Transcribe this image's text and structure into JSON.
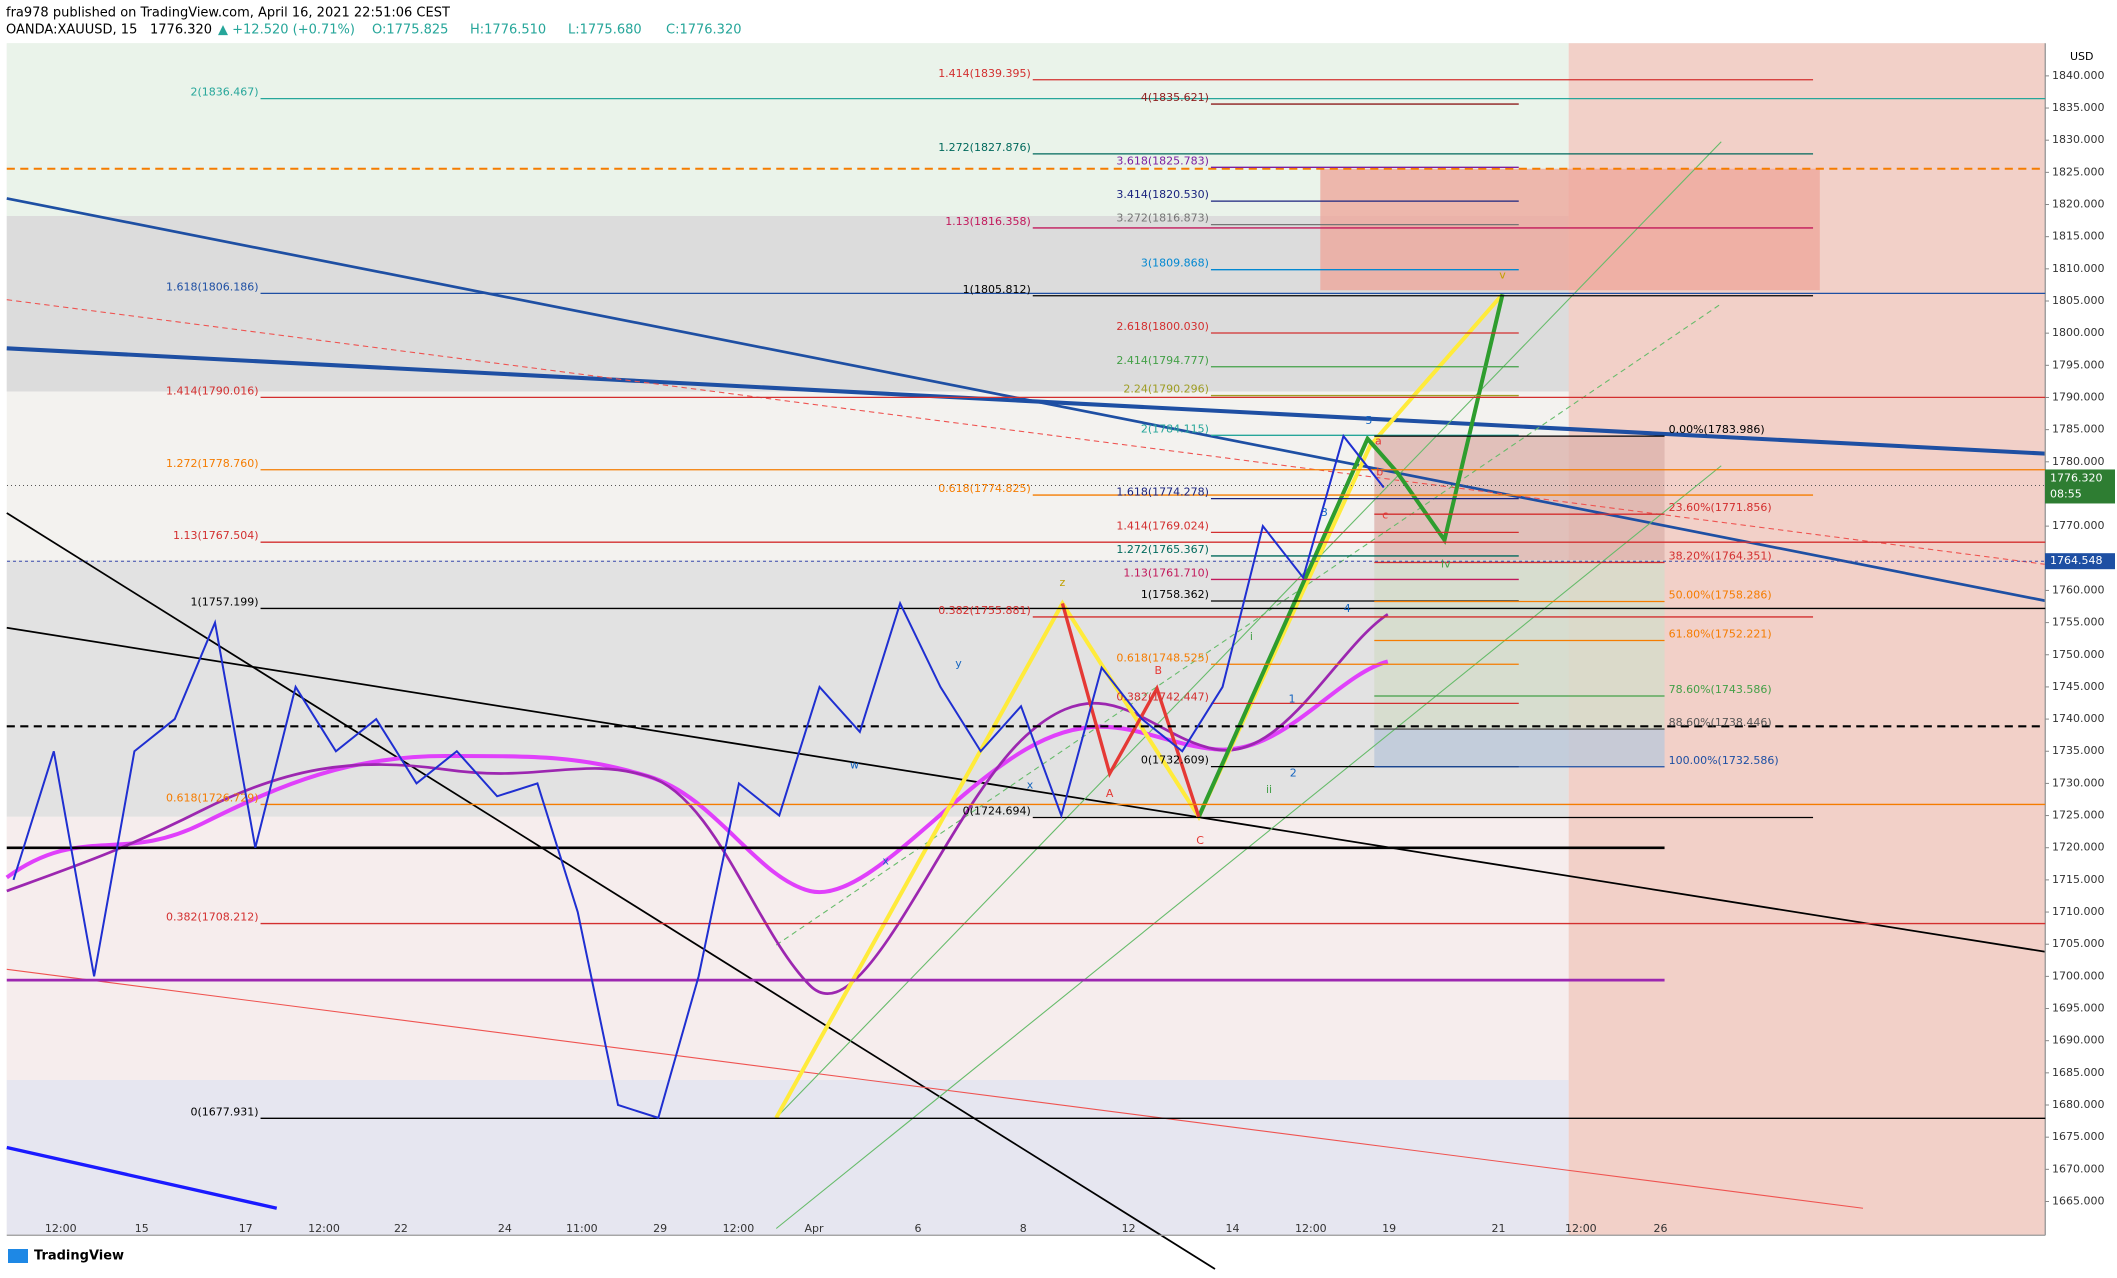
{
  "header": {
    "line1": "fra978 published on TradingView.com, April 16, 2021 22:51:06 CEST",
    "symbol": "OANDA:XAUUSD, 15",
    "last": "1776.320",
    "change": "▲ +12.520 (+0.71%)",
    "open": "O:1775.825",
    "high": "H:1776.510",
    "low": "L:1775.680",
    "close": "C:1776.320"
  },
  "footer": "TradingView",
  "chart_data": {
    "type": "line",
    "currency": "USD",
    "ylim": [
      1662.9,
      1844.8
    ],
    "yticks": [
      {
        "value": 1665,
        "label": "1665.000"
      },
      {
        "value": 1670,
        "label": "1670.000"
      },
      {
        "value": 1675,
        "label": "1675.000"
      },
      {
        "value": 1680,
        "label": "1680.000"
      },
      {
        "value": 1685,
        "label": "1685.000"
      },
      {
        "value": 1690,
        "label": "1690.000"
      },
      {
        "value": 1695,
        "label": "1695.000"
      },
      {
        "value": 1700,
        "label": "1700.000"
      },
      {
        "value": 1705,
        "label": "1705.000"
      },
      {
        "value": 1710,
        "label": "1710.000"
      },
      {
        "value": 1715,
        "label": "1715.000"
      },
      {
        "value": 1720,
        "label": "1720.000"
      },
      {
        "value": 1725,
        "label": "1725.000"
      },
      {
        "value": 1730,
        "label": "1730.000"
      },
      {
        "value": 1735,
        "label": "1735.000"
      },
      {
        "value": 1740,
        "label": "1740.000"
      },
      {
        "value": 1745,
        "label": "1745.000"
      },
      {
        "value": 1750,
        "label": "1750.000"
      },
      {
        "value": 1755,
        "label": "1755.000"
      },
      {
        "value": 1760,
        "label": "1760.000"
      },
      {
        "value": 1765,
        "label": "1765.000"
      },
      {
        "value": 1770,
        "label": "1770.000"
      },
      {
        "value": 1775,
        "label": "1775.000"
      },
      {
        "value": 1780,
        "label": "1780.000"
      },
      {
        "value": 1785,
        "label": "1785.000"
      },
      {
        "value": 1790,
        "label": "1790.000"
      },
      {
        "value": 1795,
        "label": "1795.000"
      },
      {
        "value": 1800,
        "label": "1800.000"
      },
      {
        "value": 1805,
        "label": "1805.000"
      },
      {
        "value": 1810,
        "label": "1810.000"
      },
      {
        "value": 1815,
        "label": "1815.000"
      },
      {
        "value": 1820,
        "label": "1820.000"
      },
      {
        "value": 1825,
        "label": "1825.000"
      },
      {
        "value": 1830,
        "label": "1830.000"
      },
      {
        "value": 1835,
        "label": "1835.000"
      },
      {
        "value": 1840,
        "label": "1840.000"
      }
    ],
    "time_labels": [
      "12:00",
      "15",
      "17",
      "12:00",
      "22",
      "24",
      "11:00",
      "29",
      "12:00",
      "Apr",
      "6",
      "8",
      "12",
      "14",
      "12:00",
      "19",
      "21",
      "12:00",
      "26"
    ],
    "values": [
      1715,
      1735,
      1700,
      1735,
      1740,
      1755,
      1720,
      1745,
      1735,
      1740,
      1730,
      1735,
      1728,
      1730,
      1710,
      1680,
      1678,
      1700,
      1730,
      1725,
      1745,
      1738,
      1758,
      1745,
      1735,
      1742,
      1725,
      1748,
      1740,
      1735,
      1745,
      1770,
      1762,
      1784,
      1776
    ],
    "color": "#1f2fd1",
    "last_price": {
      "value": 1776.32,
      "label": "1776.320",
      "countdown": "08:55"
    },
    "marker_price": {
      "value": 1764.548,
      "label": "1764.548"
    },
    "fib_wide": [
      {
        "label": "2(1836.467)",
        "value": 1836.467,
        "color": "#26a69a"
      },
      {
        "label": "1.618(1806.186)",
        "value": 1806.186,
        "color": "#1e4fa3"
      },
      {
        "label": "1.414(1790.016)",
        "value": 1790.016,
        "color": "#d32f2f"
      },
      {
        "label": "1.272(1778.760)",
        "value": 1778.76,
        "color": "#f57c00"
      },
      {
        "label": "1.13(1767.504)",
        "value": 1767.504,
        "color": "#d32f2f"
      },
      {
        "label": "1(1757.199)",
        "value": 1757.199,
        "color": "#000000"
      },
      {
        "label": "0.618(1726.729)",
        "value": 1726.729,
        "color": "#f57c00"
      },
      {
        "label": "0.382(1708.212)",
        "value": 1708.212,
        "color": "#d32f2f"
      },
      {
        "label": "0(1677.931)",
        "value": 1677.931,
        "color": "#000000"
      }
    ],
    "fib_mid": [
      {
        "label": "1.414(1839.395)",
        "value": 1839.395,
        "color": "#d32f2f"
      },
      {
        "label": "1.272(1827.876)",
        "value": 1827.876,
        "color": "#00695c"
      },
      {
        "label": "1.13(1816.358)",
        "value": 1816.358,
        "color": "#c2185b"
      },
      {
        "label": "1(1805.812)",
        "value": 1805.812,
        "color": "#000000"
      },
      {
        "label": "0.618(1774.825)",
        "value": 1774.825,
        "color": "#f57c00"
      },
      {
        "label": "0.382(1755.881)",
        "value": 1755.881,
        "color": "#d32f2f"
      },
      {
        "label": "0(1724.694)",
        "value": 1724.694,
        "color": "#000000"
      }
    ],
    "fib_short": [
      {
        "label": "4(1835.621)",
        "value": 1835.621,
        "color": "#8d1c1c"
      },
      {
        "label": "3.618(1825.783)",
        "value": 1825.783,
        "color": "#7b1fa2"
      },
      {
        "label": "3.414(1820.530)",
        "value": 1820.53,
        "color": "#1a237e"
      },
      {
        "label": "3.272(1816.873)",
        "value": 1816.873,
        "color": "#757575"
      },
      {
        "label": "3(1809.868)",
        "value": 1809.868,
        "color": "#0288d1"
      },
      {
        "label": "2.618(1800.030)",
        "value": 1800.03,
        "color": "#d32f2f"
      },
      {
        "label": "2.414(1794.777)",
        "value": 1794.777,
        "color": "#43a047"
      },
      {
        "label": "2.24(1790.296)",
        "value": 1790.296,
        "color": "#9e9d24"
      },
      {
        "label": "2(1784.115)",
        "value": 1784.115,
        "color": "#26a69a"
      },
      {
        "label": "1.618(1774.278)",
        "value": 1774.278,
        "color": "#1a237e"
      },
      {
        "label": "1.414(1769.024)",
        "value": 1769.024,
        "color": "#d32f2f"
      },
      {
        "label": "1.272(1765.367)",
        "value": 1765.367,
        "color": "#00695c"
      },
      {
        "label": "1.13(1761.710)",
        "value": 1761.71,
        "color": "#c2185b"
      },
      {
        "label": "1(1758.362)",
        "value": 1758.362,
        "color": "#000000"
      },
      {
        "label": "0.618(1748.525)",
        "value": 1748.525,
        "color": "#f57c00"
      },
      {
        "label": "0.382(1742.447)",
        "value": 1742.447,
        "color": "#d32f2f"
      },
      {
        "label": "0(1732.609)",
        "value": 1732.609,
        "color": "#000000"
      }
    ],
    "fib_retracement": [
      {
        "label": "0.00%(1783.986)",
        "value": 1783.986,
        "color": "#000000"
      },
      {
        "label": "23.60%(1771.856)",
        "value": 1771.856,
        "color": "#d32f2f"
      },
      {
        "label": "38.20%(1764.351)",
        "value": 1764.351,
        "color": "#d32f2f"
      },
      {
        "label": "50.00%(1758.286)",
        "value": 1758.286,
        "color": "#f57c00"
      },
      {
        "label": "61.80%(1752.221)",
        "value": 1752.221,
        "color": "#f57c00"
      },
      {
        "label": "78.60%(1743.586)",
        "value": 1743.586,
        "color": "#43a047"
      },
      {
        "label": "88.60%(1738.446)",
        "value": 1738.446,
        "color": "#555555"
      },
      {
        "label": "100.00%(1732.586)",
        "value": 1732.586,
        "color": "#1e4fa3"
      }
    ],
    "wave_labels": [
      "w",
      "x",
      "y",
      "x",
      "z",
      "A",
      "B",
      "C",
      "1",
      "2",
      "3",
      "4",
      "5",
      "i",
      "ii",
      "iv",
      "v",
      "a",
      "b",
      "c"
    ]
  }
}
